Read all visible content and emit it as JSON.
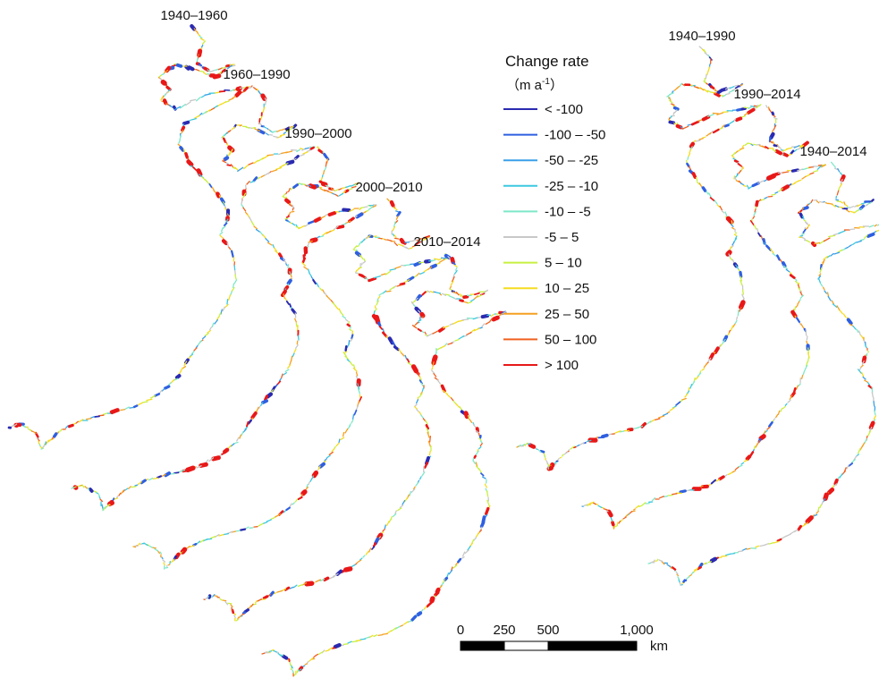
{
  "panels": [
    {
      "label": "1940–1960"
    },
    {
      "label": "1960–1990"
    },
    {
      "label": "1990–2000"
    },
    {
      "label": "2000–2010"
    },
    {
      "label": "2010–2014"
    },
    {
      "label": "1940–1990"
    },
    {
      "label": "1990–2014"
    },
    {
      "label": "1940–2014"
    }
  ],
  "legend": {
    "title": "Change rate",
    "unit_prefix": "（m a",
    "unit_sup": "-1",
    "unit_suffix": "）",
    "items": [
      {
        "label": "< -100",
        "color": "#2a2ab0"
      },
      {
        "label": "-100 – -50",
        "color": "#2f5fe0"
      },
      {
        "label": "-50 – -25",
        "color": "#3aa0e8"
      },
      {
        "label": "-25 – -10",
        "color": "#3cc8e0"
      },
      {
        "label": "-10 – -5",
        "color": "#7ee8c8"
      },
      {
        "label": "-5 – 5",
        "color": "#c8c8c8"
      },
      {
        "label": "5 – 10",
        "color": "#c8f040"
      },
      {
        "label": "10 – 25",
        "color": "#f5dc20"
      },
      {
        "label": "25 – 50",
        "color": "#f5a020"
      },
      {
        "label": "50 – 100",
        "color": "#f06020"
      },
      {
        "label": "> 100",
        "color": "#e81818"
      }
    ]
  },
  "scale_bar": {
    "labels": [
      "0",
      "250",
      "500",
      "1,000"
    ],
    "unit": "km"
  }
}
